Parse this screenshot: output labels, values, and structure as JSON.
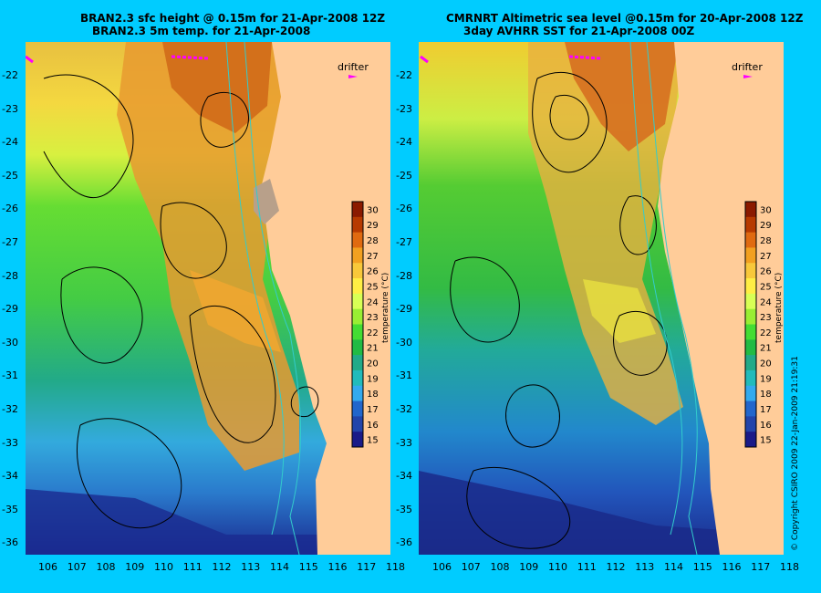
{
  "left_panel": {
    "title_line1": "BRAN2.3 sfc height @ 0.15m for 21-Apr-2008 12Z",
    "title_line2": "BRAN2.3 5m temp. for 21-Apr-2008"
  },
  "right_panel": {
    "title_line1": "CMRNRT Altimetric sea level  @0.15m  for 20-Apr-2008 12Z",
    "title_line2": "3day AVHRR SST for 21-Apr-2008 00Z"
  },
  "drifter_label": "drifter",
  "colorbar": {
    "label": "temperature (°C)",
    "ticks": [
      "30",
      "29",
      "28",
      "27",
      "26",
      "25",
      "24",
      "23",
      "22",
      "21",
      "20",
      "19",
      "18",
      "17",
      "16",
      "15"
    ],
    "colors": [
      "#8b1a00",
      "#b73a00",
      "#e06a10",
      "#f2a020",
      "#f8c83a",
      "#ffee44",
      "#d8ff55",
      "#99ee33",
      "#44dd33",
      "#22bb44",
      "#22aa88",
      "#22bbbb",
      "#33aaee",
      "#2266cc",
      "#2244aa",
      "#1a1a88"
    ]
  },
  "axes": {
    "lon_ticks": [
      "106",
      "107",
      "108",
      "109",
      "110",
      "111",
      "112",
      "113",
      "114",
      "115",
      "116",
      "117",
      "118"
    ],
    "lat_ticks": [
      "-22",
      "-23",
      "-24",
      "-25",
      "-26",
      "-27",
      "-28",
      "-29",
      "-30",
      "-31",
      "-32",
      "-33",
      "-34",
      "-35",
      "-36"
    ]
  },
  "copyright": "© Copyright CSIRO 2009   22-Jan-2009 21:19:31",
  "colors": {
    "background": "#00ccff",
    "land": "#ffcc99",
    "contour": "#000000",
    "bathymetry": "#33cccc",
    "drifter": "#ff00ff"
  }
}
